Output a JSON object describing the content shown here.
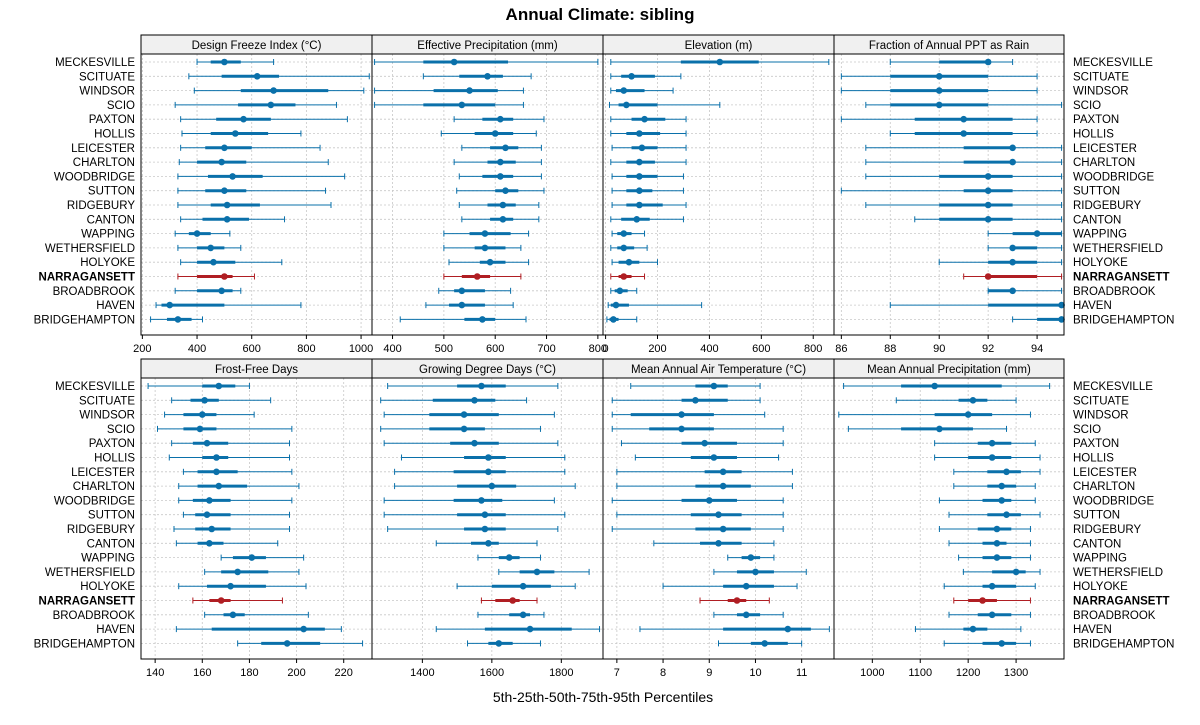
{
  "title": "Annual Climate: sibling",
  "xlabel": "5th-25th-50th-75th-95th Percentiles",
  "colors": {
    "normal": "#0a70aa",
    "highlight": "#b01e23",
    "strip_bg": "#f0f0f0",
    "grid": "#c8c8c8"
  },
  "series_labels": [
    "MECKESVILLE",
    "SCITUATE",
    "WINDSOR",
    "SCIO",
    "PAXTON",
    "HOLLIS",
    "LEICESTER",
    "CHARLTON",
    "WOODBRIDGE",
    "SUTTON",
    "RIDGEBURY",
    "CANTON",
    "WAPPING",
    "WETHERSFIELD",
    "HOLYOKE",
    "NARRAGANSETT",
    "BROADBROOK",
    "HAVEN",
    "BRIDGEHAMPTON"
  ],
  "highlight": "NARRAGANSETT",
  "chart_data": [
    {
      "type": "percentile-interval",
      "title": "Design Freeze Index (°C)",
      "xlim": [
        195,
        1040
      ],
      "ticks": [
        200,
        400,
        600,
        800,
        1000
      ],
      "values": [
        [
          400,
          450,
          500,
          560,
          680
        ],
        [
          370,
          490,
          620,
          700,
          1030
        ],
        [
          390,
          560,
          680,
          880,
          1010
        ],
        [
          320,
          550,
          670,
          760,
          910
        ],
        [
          340,
          470,
          570,
          670,
          950
        ],
        [
          345,
          450,
          540,
          660,
          780
        ],
        [
          340,
          430,
          500,
          600,
          850
        ],
        [
          335,
          400,
          490,
          580,
          880
        ],
        [
          330,
          440,
          530,
          640,
          940
        ],
        [
          330,
          430,
          500,
          580,
          870
        ],
        [
          330,
          450,
          510,
          630,
          890
        ],
        [
          340,
          420,
          510,
          590,
          720
        ],
        [
          320,
          370,
          400,
          450,
          520
        ],
        [
          330,
          400,
          450,
          500,
          560
        ],
        [
          340,
          400,
          460,
          540,
          710
        ],
        [
          330,
          400,
          500,
          530,
          610
        ],
        [
          320,
          400,
          490,
          530,
          560
        ],
        [
          250,
          270,
          300,
          500,
          780
        ],
        [
          230,
          290,
          330,
          380,
          420
        ]
      ]
    },
    {
      "type": "percentile-interval",
      "title": "Effective Precipitation (mm)",
      "xlim": [
        360,
        810
      ],
      "ticks": [
        400,
        500,
        600,
        700,
        800
      ],
      "values": [
        [
          365,
          460,
          520,
          625,
          800
        ],
        [
          460,
          530,
          585,
          615,
          670
        ],
        [
          365,
          480,
          550,
          605,
          655
        ],
        [
          365,
          460,
          535,
          600,
          655
        ],
        [
          520,
          575,
          610,
          635,
          695
        ],
        [
          495,
          560,
          600,
          635,
          680
        ],
        [
          535,
          590,
          620,
          645,
          690
        ],
        [
          520,
          585,
          610,
          640,
          690
        ],
        [
          530,
          575,
          610,
          635,
          690
        ],
        [
          525,
          600,
          620,
          645,
          695
        ],
        [
          530,
          585,
          615,
          640,
          685
        ],
        [
          535,
          590,
          615,
          635,
          685
        ],
        [
          500,
          550,
          580,
          630,
          665
        ],
        [
          500,
          560,
          580,
          620,
          650
        ],
        [
          510,
          570,
          590,
          620,
          665
        ],
        [
          500,
          535,
          565,
          590,
          650
        ],
        [
          490,
          520,
          535,
          580,
          630
        ],
        [
          465,
          510,
          535,
          580,
          635
        ],
        [
          415,
          540,
          575,
          600,
          660
        ]
      ]
    },
    {
      "type": "percentile-interval",
      "title": "Elevation (m)",
      "xlim": [
        -10,
        880
      ],
      "ticks": [
        0,
        200,
        400,
        600,
        800
      ],
      "values": [
        [
          20,
          290,
          440,
          590,
          860
        ],
        [
          20,
          60,
          100,
          190,
          290
        ],
        [
          20,
          40,
          70,
          150,
          260
        ],
        [
          15,
          50,
          80,
          200,
          440
        ],
        [
          20,
          100,
          150,
          230,
          310
        ],
        [
          20,
          80,
          130,
          210,
          310
        ],
        [
          25,
          100,
          140,
          200,
          310
        ],
        [
          20,
          80,
          130,
          190,
          310
        ],
        [
          25,
          80,
          130,
          200,
          300
        ],
        [
          25,
          80,
          130,
          180,
          300
        ],
        [
          25,
          80,
          130,
          220,
          310
        ],
        [
          20,
          60,
          120,
          170,
          300
        ],
        [
          25,
          45,
          70,
          100,
          150
        ],
        [
          20,
          45,
          70,
          110,
          160
        ],
        [
          25,
          50,
          90,
          130,
          200
        ],
        [
          20,
          50,
          70,
          100,
          150
        ],
        [
          20,
          35,
          55,
          85,
          120
        ],
        [
          10,
          20,
          40,
          90,
          370
        ],
        [
          5,
          15,
          30,
          50,
          120
        ]
      ]
    },
    {
      "type": "percentile-interval",
      "title": "Fraction of Annual PPT as Rain",
      "xlim": [
        85.7,
        95.1
      ],
      "ticks": [
        86,
        88,
        90,
        92,
        94
      ],
      "values": [
        [
          88,
          90,
          92,
          92,
          93
        ],
        [
          86,
          88,
          90,
          92,
          94
        ],
        [
          86,
          88,
          90,
          92,
          94
        ],
        [
          87,
          88,
          90,
          92,
          95
        ],
        [
          86,
          89,
          91,
          93,
          94
        ],
        [
          88,
          89,
          91,
          93,
          94
        ],
        [
          87,
          91,
          93,
          93,
          95
        ],
        [
          87,
          91,
          93,
          93,
          95
        ],
        [
          87,
          90,
          92,
          93,
          95
        ],
        [
          86,
          91,
          92,
          93,
          95
        ],
        [
          87,
          90,
          92,
          93,
          95
        ],
        [
          89,
          90,
          92,
          93,
          95
        ],
        [
          92,
          93,
          94,
          95,
          95
        ],
        [
          92,
          93,
          93,
          94,
          95
        ],
        [
          90,
          92,
          93,
          94,
          95
        ],
        [
          91,
          92,
          92,
          94,
          95
        ],
        [
          92,
          92,
          93,
          93,
          95
        ],
        [
          88,
          92,
          95,
          95,
          95
        ],
        [
          93,
          94,
          95,
          95,
          95
        ]
      ]
    },
    {
      "type": "percentile-interval",
      "title": "Frost-Free Days",
      "xlim": [
        134,
        232
      ],
      "ticks": [
        140,
        160,
        180,
        200,
        220
      ],
      "values": [
        [
          137,
          160,
          167,
          174,
          180
        ],
        [
          147,
          155,
          161,
          167,
          189
        ],
        [
          144,
          152,
          160,
          166,
          182
        ],
        [
          141,
          152,
          159,
          166,
          198
        ],
        [
          147,
          156,
          162,
          171,
          197
        ],
        [
          146,
          160,
          166,
          171,
          197
        ],
        [
          152,
          158,
          166,
          175,
          198
        ],
        [
          150,
          158,
          167,
          179,
          201
        ],
        [
          150,
          156,
          163,
          172,
          198
        ],
        [
          152,
          157,
          162,
          172,
          197
        ],
        [
          148,
          157,
          164,
          172,
          197
        ],
        [
          149,
          158,
          163,
          169,
          192
        ],
        [
          168,
          173,
          181,
          187,
          203
        ],
        [
          161,
          168,
          175,
          188,
          201
        ],
        [
          150,
          162,
          172,
          187,
          204
        ],
        [
          156,
          163,
          168,
          172,
          194
        ],
        [
          161,
          169,
          173,
          178,
          205
        ],
        [
          149,
          164,
          203,
          212,
          219
        ],
        [
          175,
          185,
          196,
          210,
          228
        ]
      ]
    },
    {
      "type": "percentile-interval",
      "title": "Growing Degree Days (°C)",
      "xlim": [
        1255,
        1920
      ],
      "ticks": [
        1400,
        1600,
        1800
      ],
      "values": [
        [
          1300,
          1500,
          1570,
          1640,
          1790
        ],
        [
          1280,
          1430,
          1550,
          1610,
          1700
        ],
        [
          1290,
          1420,
          1520,
          1620,
          1780
        ],
        [
          1280,
          1420,
          1520,
          1580,
          1740
        ],
        [
          1290,
          1480,
          1550,
          1620,
          1790
        ],
        [
          1340,
          1520,
          1590,
          1640,
          1810
        ],
        [
          1320,
          1490,
          1590,
          1640,
          1810
        ],
        [
          1320,
          1500,
          1600,
          1670,
          1840
        ],
        [
          1290,
          1490,
          1570,
          1630,
          1780
        ],
        [
          1290,
          1500,
          1580,
          1640,
          1810
        ],
        [
          1300,
          1520,
          1580,
          1640,
          1790
        ],
        [
          1440,
          1540,
          1590,
          1620,
          1730
        ],
        [
          1560,
          1620,
          1650,
          1680,
          1740
        ],
        [
          1620,
          1680,
          1730,
          1780,
          1880
        ],
        [
          1500,
          1600,
          1690,
          1770,
          1840
        ],
        [
          1570,
          1610,
          1660,
          1680,
          1730
        ],
        [
          1560,
          1650,
          1690,
          1710,
          1750
        ],
        [
          1440,
          1580,
          1710,
          1830,
          1910
        ],
        [
          1530,
          1590,
          1620,
          1660,
          1740
        ]
      ]
    },
    {
      "type": "percentile-interval",
      "title": "Mean Annual Air Temperature (°C)",
      "xlim": [
        6.7,
        11.7
      ],
      "ticks": [
        7,
        8,
        9,
        10,
        11
      ],
      "values": [
        [
          7.3,
          8.7,
          9.1,
          9.4,
          10.1
        ],
        [
          6.9,
          8.4,
          8.7,
          9.4,
          10.1
        ],
        [
          6.9,
          7.3,
          8.4,
          9.1,
          10.2
        ],
        [
          6.9,
          7.7,
          8.4,
          9.1,
          10.6
        ],
        [
          7.1,
          8.4,
          8.9,
          9.6,
          10.6
        ],
        [
          7.4,
          8.6,
          9.1,
          9.6,
          10.5
        ],
        [
          7.0,
          8.9,
          9.3,
          9.7,
          10.8
        ],
        [
          7.0,
          8.7,
          9.3,
          9.9,
          10.8
        ],
        [
          6.9,
          8.4,
          9.0,
          9.6,
          10.6
        ],
        [
          7.0,
          8.6,
          9.2,
          9.7,
          10.6
        ],
        [
          6.9,
          8.7,
          9.3,
          9.9,
          10.6
        ],
        [
          7.8,
          8.8,
          9.2,
          9.7,
          10.4
        ],
        [
          9.4,
          9.7,
          9.9,
          10.1,
          10.4
        ],
        [
          9.1,
          9.6,
          10.0,
          10.4,
          11.1
        ],
        [
          8.0,
          9.3,
          9.8,
          10.4,
          10.9
        ],
        [
          8.8,
          9.4,
          9.6,
          9.8,
          10.3
        ],
        [
          9.1,
          9.6,
          9.8,
          10.1,
          10.6
        ],
        [
          7.5,
          9.3,
          10.7,
          11.2,
          11.6
        ],
        [
          9.2,
          9.9,
          10.2,
          10.7,
          11.0
        ]
      ]
    },
    {
      "type": "percentile-interval",
      "title": "Mean Annual Precipitation (mm)",
      "xlim": [
        920,
        1400
      ],
      "ticks": [
        1000,
        1100,
        1200,
        1300
      ],
      "values": [
        [
          940,
          1060,
          1130,
          1270,
          1370
        ],
        [
          1050,
          1180,
          1210,
          1240,
          1300
        ],
        [
          930,
          1130,
          1200,
          1250,
          1330
        ],
        [
          950,
          1060,
          1140,
          1210,
          1280
        ],
        [
          1130,
          1220,
          1250,
          1290,
          1340
        ],
        [
          1130,
          1200,
          1250,
          1290,
          1350
        ],
        [
          1170,
          1240,
          1280,
          1310,
          1350
        ],
        [
          1170,
          1240,
          1270,
          1300,
          1340
        ],
        [
          1140,
          1230,
          1270,
          1290,
          1340
        ],
        [
          1160,
          1240,
          1280,
          1310,
          1350
        ],
        [
          1140,
          1220,
          1260,
          1290,
          1330
        ],
        [
          1160,
          1230,
          1260,
          1280,
          1330
        ],
        [
          1180,
          1230,
          1260,
          1290,
          1330
        ],
        [
          1190,
          1250,
          1300,
          1320,
          1350
        ],
        [
          1150,
          1230,
          1250,
          1300,
          1340
        ],
        [
          1170,
          1200,
          1230,
          1260,
          1330
        ],
        [
          1160,
          1220,
          1250,
          1290,
          1330
        ],
        [
          1090,
          1190,
          1210,
          1240,
          1310
        ],
        [
          1150,
          1230,
          1270,
          1300,
          1330
        ]
      ]
    }
  ]
}
